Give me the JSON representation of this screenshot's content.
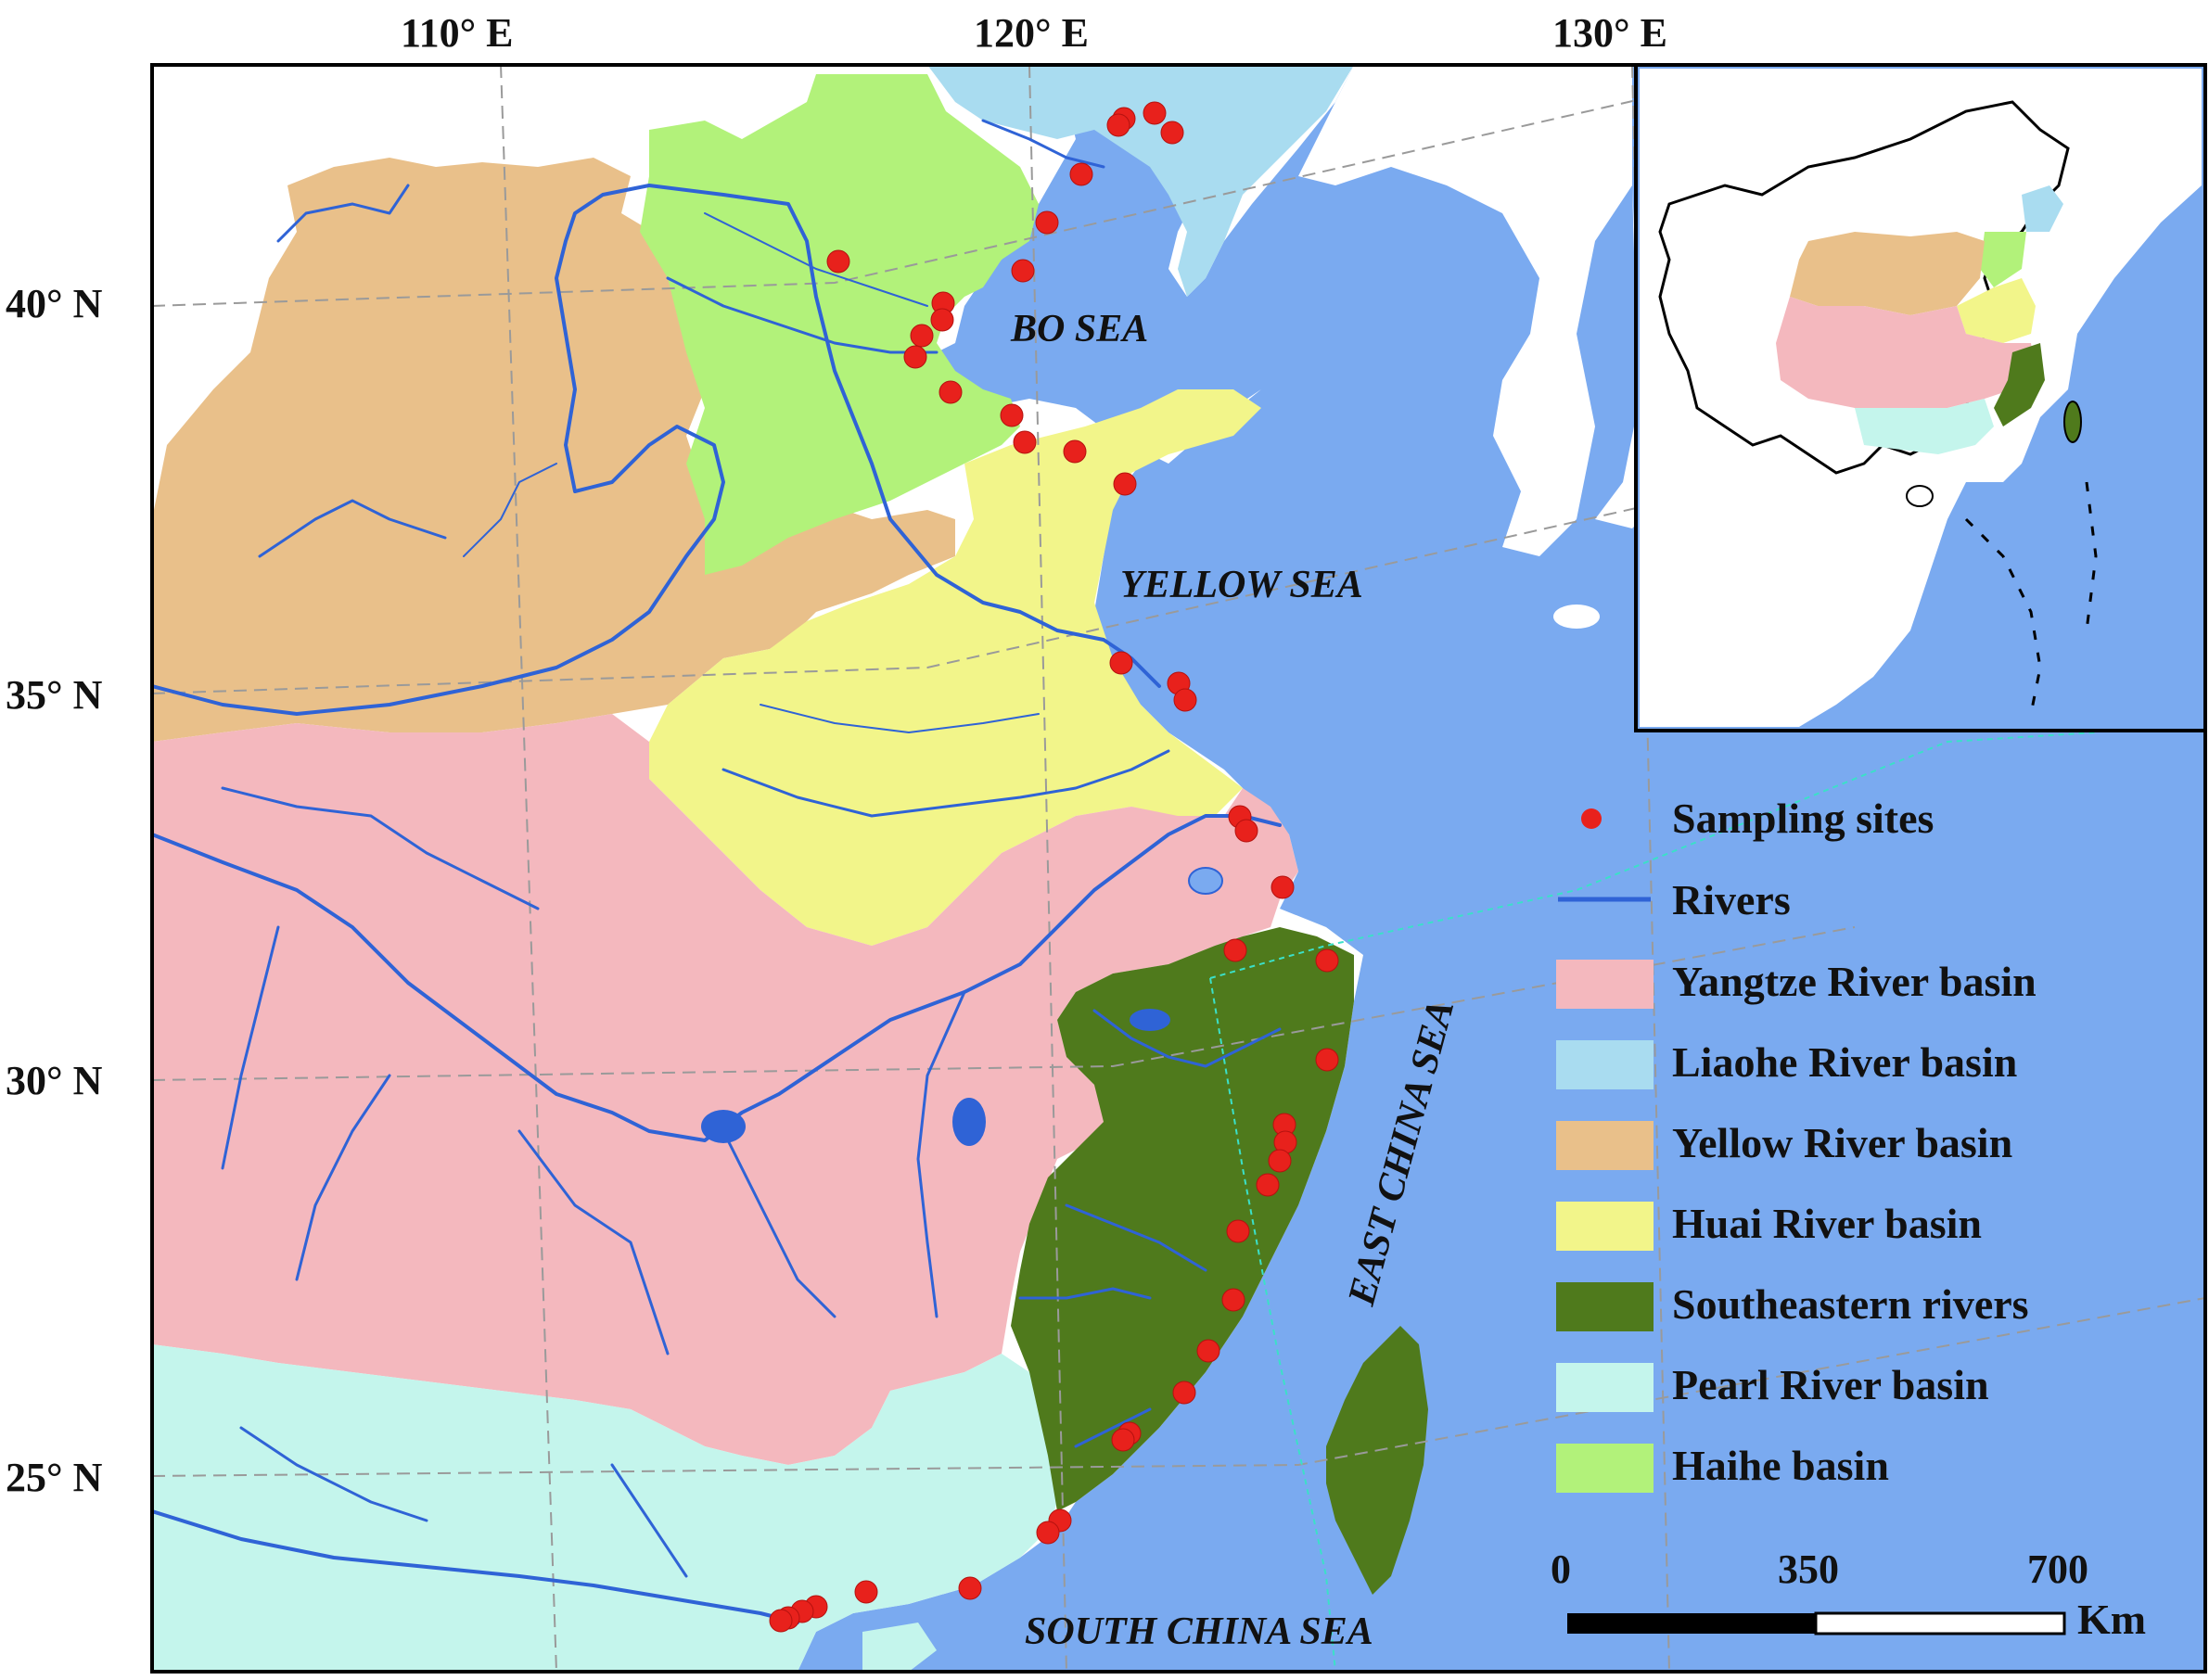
{
  "colors": {
    "sea": "#7aaaf0",
    "land_other": "#ffffff",
    "yangtze": "#f4b8be",
    "liaohe": "#a9dcf0",
    "yellow": "#e9c08a",
    "huai": "#f2f58a",
    "southeastern": "#4f7a1c",
    "pearl": "#c4f5ec",
    "haihe": "#b2f27a",
    "river": "#2f63d6",
    "site": "#e8211c",
    "grid": "#9a9a9a"
  },
  "axes": {
    "lon_labels": [
      "110° E",
      "120° E",
      "130° E"
    ],
    "lat_labels": [
      "40° N",
      "35° N",
      "30° N",
      "25° N"
    ]
  },
  "seas": {
    "bo": "BO SEA",
    "yellow": "YELLOW SEA",
    "east_china": "EAST CHINA SEA",
    "south_china": "SOUTH CHINA SEA"
  },
  "legend": {
    "sampling_sites": "Sampling sites",
    "rivers": "Rivers",
    "basins": [
      {
        "label": "Yangtze River basin",
        "color": "#f4b8be"
      },
      {
        "label": "Liaohe River basin",
        "color": "#a9dcf0"
      },
      {
        "label": "Yellow River basin",
        "color": "#e9c08a"
      },
      {
        "label": "Huai River basin",
        "color": "#f2f58a"
      },
      {
        "label": "Southeastern rivers",
        "color": "#4f7a1c"
      },
      {
        "label": "Pearl River basin",
        "color": "#c4f5ec"
      },
      {
        "label": "Haihe basin",
        "color": "#b2f27a"
      }
    ]
  },
  "scale_bar": {
    "ticks": [
      "0",
      "350",
      "700"
    ],
    "unit": "Km"
  }
}
